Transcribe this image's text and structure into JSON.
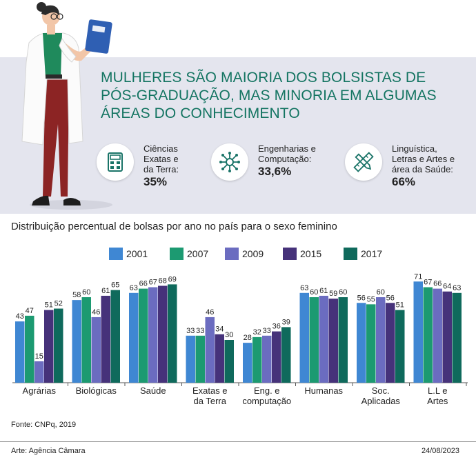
{
  "headline": "MULHERES SÃO MAIORIA DOS BOLSISTAS DE PÓS-GRADUAÇÃO, MAS MINORIA EM ALGUMAS ÁREAS DO CONHECIMENTO",
  "stats": [
    {
      "label_lines": [
        "Ciências",
        "Exatas e",
        "da Terra:"
      ],
      "value": "35%",
      "icon": "calculator-icon"
    },
    {
      "label_lines": [
        "Engenharias e",
        "Computação:"
      ],
      "value": "33,6%",
      "icon": "network-icon"
    },
    {
      "label_lines": [
        "Linguística,",
        "Letras e Artes e",
        "área da Saúde:"
      ],
      "value": "66%",
      "icon": "pencil-ruler-icon"
    }
  ],
  "chart_data": {
    "type": "bar",
    "title": "Distribuição percentual de bolsas por ano no país para o sexo feminino",
    "categories": [
      "Agrárias",
      "Biológicas",
      "Saúde",
      "Exatas e da Terra",
      "Eng. e computação",
      "Humanas",
      "Soc. Aplicadas",
      "L.L e Artes"
    ],
    "category_lines": [
      [
        "Agrárias"
      ],
      [
        "Biológicas"
      ],
      [
        "Saúde"
      ],
      [
        "Exatas e",
        "da Terra"
      ],
      [
        "Eng. e",
        "computação"
      ],
      [
        "Humanas"
      ],
      [
        "Soc.",
        "Aplicadas"
      ],
      [
        "L.L e",
        "Artes"
      ]
    ],
    "series": [
      {
        "name": "2001",
        "color": "#3f87d3",
        "values": [
          43,
          58,
          63,
          33,
          28,
          63,
          56,
          71
        ]
      },
      {
        "name": "2007",
        "color": "#1c9a71",
        "values": [
          47,
          60,
          66,
          33,
          32,
          60,
          55,
          67
        ]
      },
      {
        "name": "2009",
        "color": "#6b6cc0",
        "values": [
          15,
          46,
          67,
          46,
          33,
          61,
          60,
          66
        ]
      },
      {
        "name": "2015",
        "color": "#46327a",
        "values": [
          51,
          61,
          68,
          34,
          36,
          59,
          56,
          64
        ]
      },
      {
        "name": "2017",
        "color": "#0f6a5c",
        "values": [
          52,
          65,
          69,
          30,
          39,
          60,
          51,
          63
        ]
      }
    ],
    "ylim": [
      0,
      75
    ],
    "xlabel": "",
    "ylabel": ""
  },
  "source": "Fonte: CNPq, 2019",
  "credit": "Arte: Agência Câmara",
  "date": "24/08/2023"
}
